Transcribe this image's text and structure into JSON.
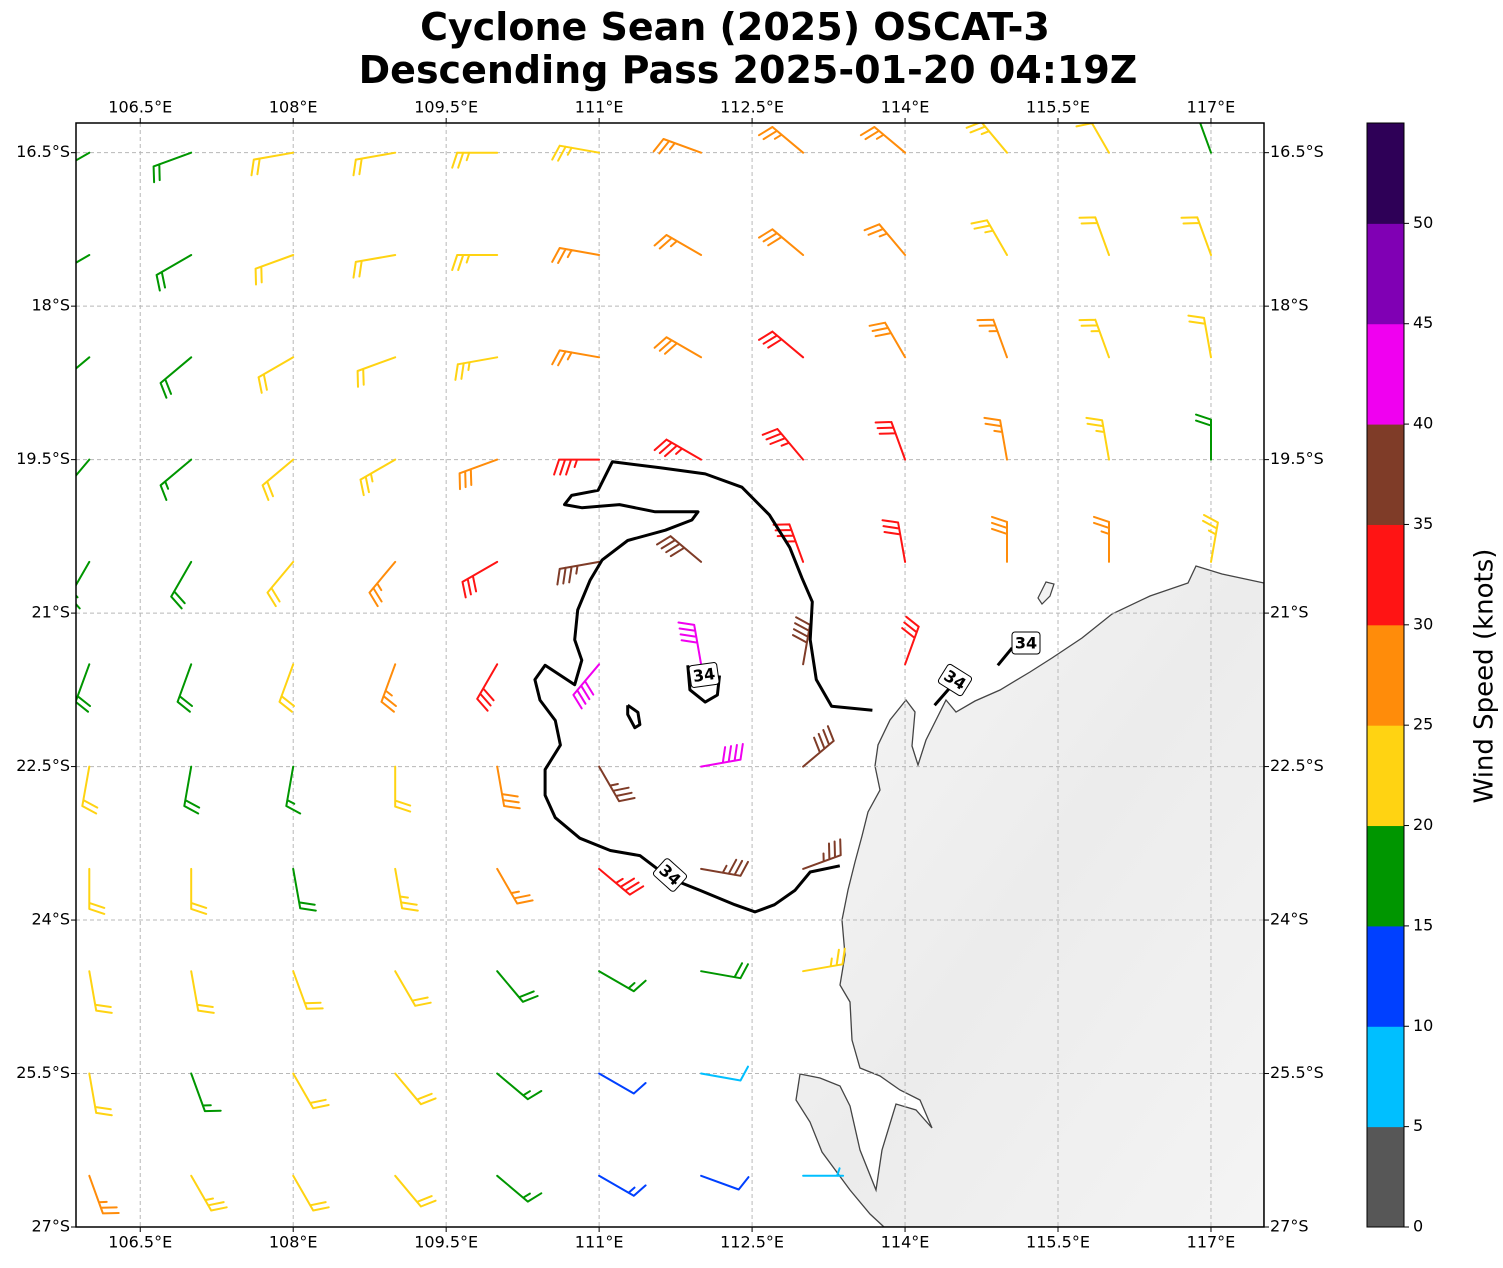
{
  "chart_data": {
    "type": "barbs",
    "title": [
      "Cyclone Sean (2025) OSCAT-3",
      "Descending Pass 2025-01-20 04:19Z"
    ],
    "xlim": [
      105.87,
      117.52
    ],
    "ylim": [
      -27,
      -16.21
    ],
    "xticks": [
      {
        "value": 106.5,
        "label": "106.5°E"
      },
      {
        "value": 108,
        "label": "108°E"
      },
      {
        "value": 109.5,
        "label": "109.5°E"
      },
      {
        "value": 111,
        "label": "111°E"
      },
      {
        "value": 112.5,
        "label": "112.5°E"
      },
      {
        "value": 114,
        "label": "114°E"
      },
      {
        "value": 115.5,
        "label": "115.5°E"
      },
      {
        "value": 117,
        "label": "117°E"
      }
    ],
    "yticks": [
      {
        "value": -16.5,
        "label": "16.5°S"
      },
      {
        "value": -18,
        "label": "18°S"
      },
      {
        "value": -19.5,
        "label": "19.5°S"
      },
      {
        "value": -21,
        "label": "21°S"
      },
      {
        "value": -22.5,
        "label": "22.5°S"
      },
      {
        "value": -24,
        "label": "24°S"
      },
      {
        "value": -25.5,
        "label": "25.5°S"
      },
      {
        "value": -27,
        "label": "27°S"
      }
    ],
    "grid": true,
    "barbs": {
      "lon": [
        106,
        107,
        108,
        109,
        110,
        111,
        112,
        113,
        114,
        115,
        116,
        117
      ],
      "lat": [
        -16.5,
        -17.5,
        -18.5,
        -19.5,
        -20.5,
        -21.5,
        -22.5,
        -23.5,
        -24.5,
        -25.5,
        -26.5
      ],
      "speed": [
        [
          17,
          18,
          21,
          22,
          23,
          24,
          25,
          26,
          26,
          23,
          21,
          18
        ],
        [
          17,
          18,
          21,
          22,
          23,
          25,
          26,
          28,
          27,
          24,
          22,
          21
        ],
        [
          17,
          18,
          20,
          22,
          24,
          26,
          29,
          31,
          29,
          27,
          24,
          22
        ],
        [
          16,
          17,
          21,
          24,
          28,
          33,
          34,
          33,
          30,
          27,
          23,
          19
        ],
        [
          17,
          18,
          22,
          25,
          30,
          37,
          38,
          34,
          31,
          28,
          26,
          24
        ],
        [
          18,
          19,
          22,
          26,
          32,
          42,
          40,
          38,
          32,
          null,
          null,
          null
        ],
        [
          21,
          18,
          17,
          22,
          28,
          36,
          42,
          38,
          null,
          null,
          null,
          null
        ],
        [
          21,
          22,
          19,
          23,
          27,
          33,
          37,
          36,
          null,
          null,
          null,
          null
        ],
        [
          22,
          22,
          22,
          21,
          19,
          17,
          19,
          24,
          null,
          null,
          null,
          null
        ],
        [
          22,
          17,
          21,
          21,
          17,
          12,
          9,
          null,
          null,
          null,
          null,
          null
        ],
        [
          26,
          23,
          22,
          21,
          17,
          13,
          10,
          7,
          null,
          null,
          null,
          null
        ]
      ],
      "direction": [
        [
          240,
          250,
          260,
          260,
          270,
          280,
          290,
          310,
          310,
          320,
          330,
          340
        ],
        [
          240,
          240,
          250,
          260,
          270,
          280,
          300,
          310,
          320,
          330,
          340,
          340
        ],
        [
          230,
          230,
          240,
          250,
          260,
          280,
          300,
          310,
          330,
          340,
          340,
          350
        ],
        [
          220,
          230,
          230,
          240,
          250,
          270,
          300,
          320,
          340,
          350,
          350,
          0
        ],
        [
          210,
          210,
          220,
          220,
          240,
          260,
          310,
          340,
          350,
          0,
          0,
          10
        ],
        [
          200,
          200,
          200,
          200,
          210,
          220,
          350,
          10,
          20,
          null,
          null,
          null
        ],
        [
          190,
          190,
          190,
          180,
          170,
          150,
          80,
          50,
          null,
          null,
          null,
          null
        ],
        [
          180,
          180,
          170,
          170,
          150,
          130,
          100,
          70,
          null,
          null,
          null,
          null
        ],
        [
          170,
          170,
          160,
          150,
          140,
          120,
          100,
          80,
          null,
          null,
          null,
          null
        ],
        [
          170,
          160,
          150,
          140,
          130,
          120,
          100,
          null,
          null,
          null,
          null,
          null
        ],
        [
          160,
          150,
          150,
          140,
          130,
          120,
          110,
          90,
          null,
          null,
          null,
          null
        ]
      ]
    },
    "contour": {
      "level": 34,
      "pieces": [
        {
          "lon": [
            113.36,
            113.07,
            112.92,
            112.72,
            112.53,
            112.33,
            111.99,
            111.69,
            111.4,
            111.11,
            110.81,
            110.57,
            110.47,
            110.47,
            110.62,
            110.57,
            110.42,
            110.37,
            110.47,
            110.76,
            110.83,
            110.76,
            110.79,
            110.91,
            111.03,
            111.28,
            111.65,
            111.91,
            111.97,
            111.55,
            111.2,
            110.83,
            110.66,
            110.73,
            110.99,
            111.13,
            111.6,
            112.04,
            112.4,
            112.67,
            112.87,
            112.99,
            113.09,
            113.07,
            113.13,
            113.28,
            113.68
          ],
          "lat": [
            -23.47,
            -23.53,
            -23.71,
            -23.85,
            -23.92,
            -23.85,
            -23.71,
            -23.59,
            -23.37,
            -23.32,
            -23.2,
            -23.0,
            -22.78,
            -22.53,
            -22.29,
            -22.05,
            -21.85,
            -21.65,
            -21.51,
            -21.7,
            -21.46,
            -21.26,
            -20.97,
            -20.68,
            -20.48,
            -20.29,
            -20.19,
            -20.09,
            -20.01,
            -20.01,
            -19.94,
            -19.97,
            -19.94,
            -19.85,
            -19.8,
            -19.52,
            -19.58,
            -19.64,
            -19.77,
            -20.04,
            -20.36,
            -20.66,
            -20.89,
            -21.26,
            -21.65,
            -21.91,
            -21.95
          ]
        },
        {
          "lon": [
            111.28,
            111.38,
            111.4,
            111.35,
            111.28,
            111.28
          ],
          "lat": [
            -21.9,
            -21.97,
            -22.09,
            -22.12,
            -21.99,
            -21.9
          ]
        },
        {
          "lon": [
            111.87,
            111.89,
            112.04,
            112.16,
            112.18
          ],
          "lat": [
            -21.51,
            -21.75,
            -21.87,
            -21.8,
            -21.61
          ]
        },
        {
          "lon": [
            114.29,
            114.44
          ],
          "lat": [
            -21.9,
            -21.73
          ]
        },
        {
          "lon": [
            114.91,
            115.05
          ],
          "lat": [
            -21.51,
            -21.34
          ]
        }
      ]
    },
    "colorbar": {
      "label": "Wind Speed (knots)",
      "boundaries": [
        0,
        5,
        10,
        15,
        20,
        25,
        30,
        35,
        40,
        45,
        50,
        55
      ],
      "colors": [
        "#575757",
        "#00bfff",
        "#0040ff",
        "#009600",
        "#ffd312",
        "#ff8c0a",
        "#ff1414",
        "#7f3c28",
        "#f000f0",
        "#8000b4",
        "#2e0057"
      ],
      "ticks": [
        0,
        5,
        10,
        15,
        20,
        25,
        30,
        35,
        40,
        45,
        50
      ]
    }
  }
}
